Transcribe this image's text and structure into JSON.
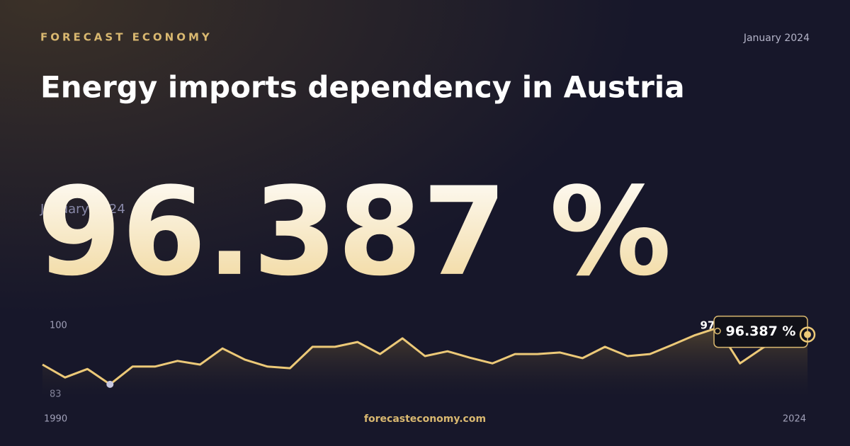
{
  "brand": "FORECAST ECONOMY",
  "date": "January 2024",
  "title": "Energy imports dependency in Austria",
  "footer": "forecasteconomy.com",
  "chart_data": {
    "type": "line",
    "x": [
      1990,
      1991,
      1992,
      1993,
      1994,
      1995,
      1996,
      1997,
      1998,
      1999,
      2000,
      2001,
      2002,
      2003,
      2004,
      2005,
      2006,
      2007,
      2008,
      2009,
      2010,
      2011,
      2012,
      2013,
      2014,
      2015,
      2016,
      2017,
      2018,
      2019,
      2020,
      2021,
      2022,
      2023,
      2024
    ],
    "series": [
      {
        "color": "#ecc978",
        "values": [
          87.9,
          84.7,
          86.8,
          83.0,
          87.4,
          87.4,
          88.8,
          87.9,
          91.9,
          89.1,
          87.4,
          87.0,
          92.3,
          92.3,
          93.5,
          90.5,
          94.4,
          90.0,
          91.2,
          89.6,
          88.2,
          90.5,
          90.5,
          90.9,
          89.5,
          92.3,
          90.0,
          90.5,
          92.8,
          95.2,
          97.0,
          88.2,
          92.0,
          95.0,
          96.387
        ],
        "value_labels": [
          null,
          null,
          null,
          null,
          null,
          null,
          null,
          null,
          null,
          null,
          null,
          null,
          null,
          null,
          null,
          null,
          null,
          null,
          null,
          null,
          null,
          null,
          null,
          null,
          null,
          null,
          null,
          null,
          null,
          null,
          "97",
          null,
          null,
          null,
          "96.387 %"
        ]
      }
    ],
    "xlim": [
      1990,
      2024
    ],
    "xticks": [
      1990,
      2024
    ],
    "ylim": [
      80,
      100
    ],
    "yticks": [
      100,
      83
    ]
  }
}
